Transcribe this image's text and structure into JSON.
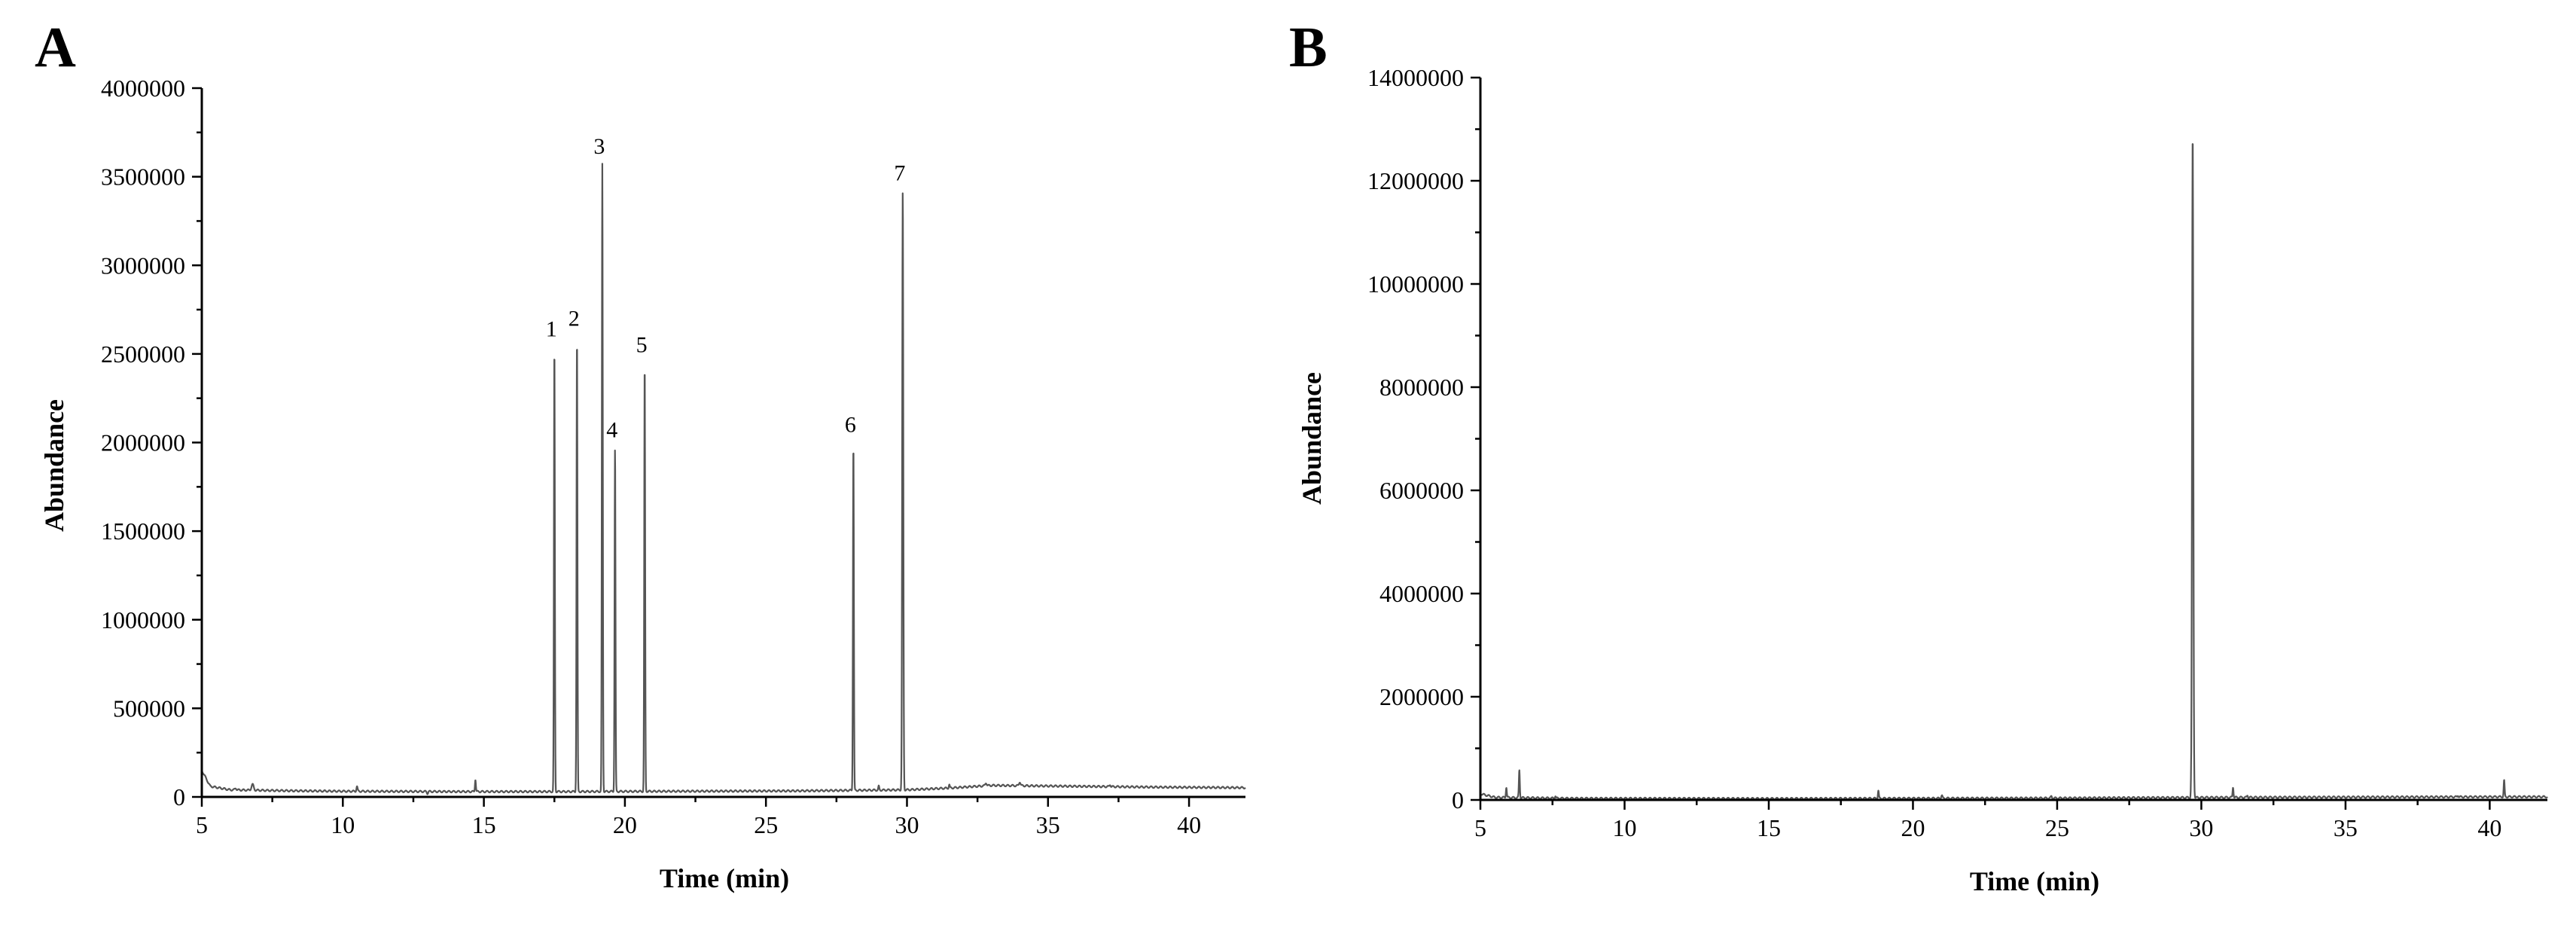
{
  "panels": [
    {
      "letter": "A",
      "chart_data": {
        "type": "line",
        "title": "",
        "xlabel": "Time (min)",
        "ylabel": "Abundance",
        "xlim": [
          5,
          42
        ],
        "ylim": [
          0,
          4000000
        ],
        "x_ticks": [
          5,
          10,
          15,
          20,
          25,
          30,
          35,
          40
        ],
        "y_ticks": [
          0,
          500000,
          1000000,
          1500000,
          2000000,
          2500000,
          3000000,
          3500000,
          4000000
        ],
        "y_tick_labels": [
          "0",
          "500000",
          "1000000",
          "1500000",
          "2000000",
          "2500000",
          "3000000",
          "3500000",
          "4000000"
        ],
        "baseline": [
          [
            5,
            150000
          ],
          [
            5.3,
            60000
          ],
          [
            6,
            40000
          ],
          [
            8,
            35000
          ],
          [
            10,
            32000
          ],
          [
            14,
            30000
          ],
          [
            18,
            30000
          ],
          [
            22,
            32000
          ],
          [
            26,
            34000
          ],
          [
            30,
            40000
          ],
          [
            31.5,
            50000
          ],
          [
            33,
            65000
          ],
          [
            36,
            60000
          ],
          [
            39,
            55000
          ],
          [
            42,
            52000
          ]
        ],
        "series": [
          {
            "peaks": [
              {
                "x": 6.2,
                "y": 50000,
                "w": 0.08
              },
              {
                "x": 6.8,
                "y": 70000,
                "w": 0.12
              },
              {
                "x": 10.5,
                "y": 60000,
                "w": 0.06
              },
              {
                "x": 13.0,
                "y": 20000,
                "w": 0.06
              },
              {
                "x": 14.7,
                "y": 100000,
                "w": 0.05
              },
              {
                "x": 17.5,
                "y": 2540000,
                "w": 0.05
              },
              {
                "x": 18.3,
                "y": 2600000,
                "w": 0.05
              },
              {
                "x": 19.2,
                "y": 3570000,
                "w": 0.05
              },
              {
                "x": 19.65,
                "y": 1970000,
                "w": 0.05
              },
              {
                "x": 20.7,
                "y": 2450000,
                "w": 0.05
              },
              {
                "x": 28.1,
                "y": 2000000,
                "w": 0.05
              },
              {
                "x": 29.0,
                "y": 60000,
                "w": 0.05
              },
              {
                "x": 29.85,
                "y": 3420000,
                "w": 0.06
              },
              {
                "x": 31.5,
                "y": 70000,
                "w": 0.05
              },
              {
                "x": 32.8,
                "y": 80000,
                "w": 0.08
              },
              {
                "x": 34.0,
                "y": 85000,
                "w": 0.08
              },
              {
                "x": 37.2,
                "y": 70000,
                "w": 0.06
              }
            ]
          }
        ],
        "annotations": [
          {
            "text": "1",
            "x": 17.5,
            "y": 2540000
          },
          {
            "text": "2",
            "x": 18.3,
            "y": 2600000
          },
          {
            "text": "3",
            "x": 19.2,
            "y": 3570000
          },
          {
            "text": "4",
            "x": 19.65,
            "y": 1970000
          },
          {
            "text": "5",
            "x": 20.7,
            "y": 2450000
          },
          {
            "text": "6",
            "x": 28.1,
            "y": 2000000
          },
          {
            "text": "7",
            "x": 29.85,
            "y": 3420000
          }
        ]
      }
    },
    {
      "letter": "B",
      "chart_data": {
        "type": "line",
        "title": "",
        "xlabel": "Time (min)",
        "ylabel": "Abundance",
        "xlim": [
          5,
          42
        ],
        "ylim": [
          0,
          14000000
        ],
        "x_ticks": [
          5,
          10,
          15,
          20,
          25,
          30,
          35,
          40
        ],
        "y_ticks": [
          0,
          2000000,
          4000000,
          6000000,
          8000000,
          10000000,
          12000000,
          14000000
        ],
        "y_tick_labels": [
          "0",
          "2000000",
          "4000000",
          "6000000",
          "8000000",
          "10000000",
          "12000000",
          "14000000"
        ],
        "baseline": [
          [
            5,
            120000
          ],
          [
            5.5,
            50000
          ],
          [
            8,
            30000
          ],
          [
            15,
            25000
          ],
          [
            20,
            30000
          ],
          [
            25,
            35000
          ],
          [
            29,
            45000
          ],
          [
            32,
            50000
          ],
          [
            36,
            55000
          ],
          [
            40,
            60000
          ],
          [
            42,
            60000
          ]
        ],
        "series": [
          {
            "peaks": [
              {
                "x": 5.9,
                "y": 250000,
                "w": 0.05
              },
              {
                "x": 6.35,
                "y": 580000,
                "w": 0.05
              },
              {
                "x": 7.6,
                "y": 80000,
                "w": 0.05
              },
              {
                "x": 18.8,
                "y": 180000,
                "w": 0.05
              },
              {
                "x": 21.0,
                "y": 90000,
                "w": 0.06
              },
              {
                "x": 24.8,
                "y": 70000,
                "w": 0.06
              },
              {
                "x": 29.7,
                "y": 12900000,
                "w": 0.07
              },
              {
                "x": 31.1,
                "y": 250000,
                "w": 0.05
              },
              {
                "x": 31.6,
                "y": 90000,
                "w": 0.05
              },
              {
                "x": 38.9,
                "y": 90000,
                "w": 0.05
              },
              {
                "x": 40.5,
                "y": 380000,
                "w": 0.05
              }
            ]
          }
        ],
        "annotations": []
      }
    }
  ]
}
